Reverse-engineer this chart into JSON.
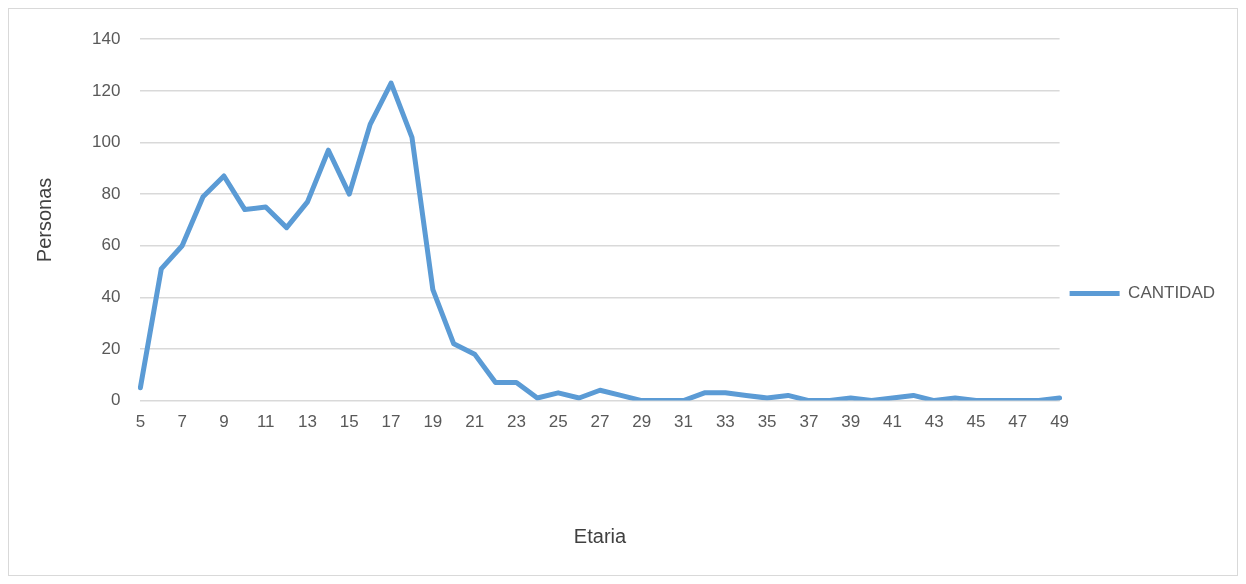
{
  "chart_data": {
    "type": "line",
    "xlabel": "Etaria",
    "ylabel": "Personas",
    "categories": [
      "5",
      null,
      "7",
      null,
      "9",
      null,
      "11",
      null,
      "13",
      null,
      "15",
      null,
      "17",
      null,
      "19",
      null,
      "21",
      null,
      "23",
      null,
      "25",
      null,
      "27",
      null,
      "29",
      null,
      "31",
      null,
      "33",
      null,
      "35",
      null,
      "37",
      null,
      "39",
      null,
      "41",
      null,
      "43",
      null,
      "45",
      null,
      "47",
      null,
      "49"
    ],
    "series": [
      {
        "name": "CANTIDAD",
        "color": "#5b9bd5",
        "values": [
          5,
          51,
          60,
          79,
          87,
          74,
          75,
          67,
          77,
          97,
          80,
          107,
          123,
          102,
          43,
          22,
          18,
          7,
          7,
          1,
          3,
          1,
          4,
          2,
          0,
          0,
          0,
          3,
          3,
          2,
          1,
          2,
          0,
          0,
          1,
          0,
          1,
          2,
          0,
          1,
          0,
          0,
          0,
          0,
          1
        ]
      }
    ],
    "ylim": [
      0,
      140
    ],
    "yticks": [
      0,
      20,
      40,
      60,
      80,
      100,
      120,
      140
    ],
    "grid": "y",
    "legend": "right",
    "marker": "none",
    "line_style": "solid"
  }
}
